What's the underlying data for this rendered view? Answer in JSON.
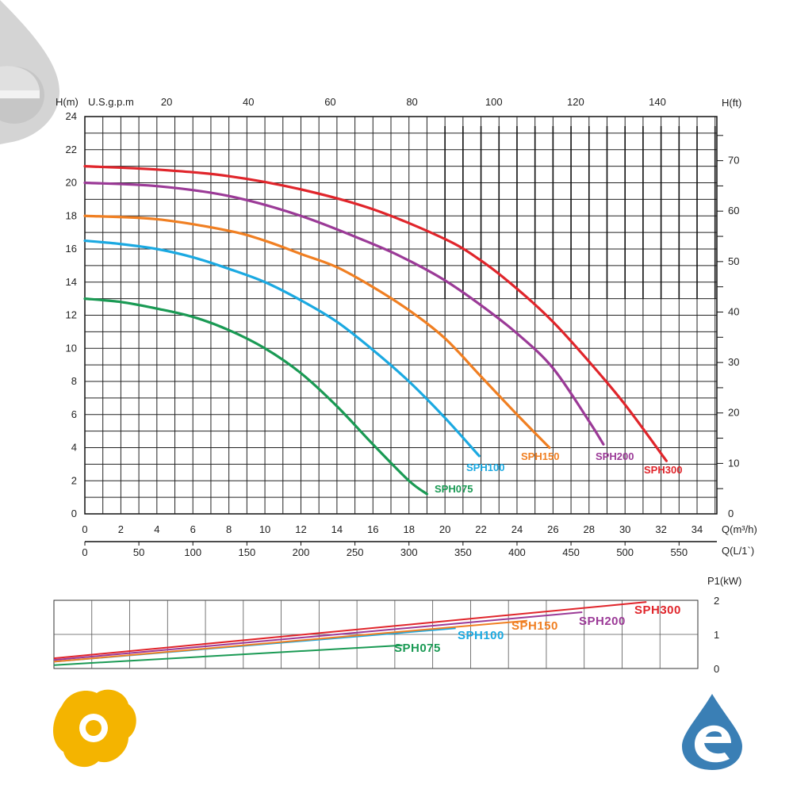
{
  "chart_data": [
    {
      "type": "line",
      "name": "head-flow",
      "x_axis_bottom": {
        "label": "Q(m³/h)",
        "ticks": [
          0,
          2,
          4,
          6,
          8,
          10,
          12,
          14,
          16,
          18,
          20,
          22,
          24,
          26,
          28,
          30,
          32,
          34
        ],
        "range": [
          0,
          35.1
        ]
      },
      "x_axis_bottom_secondary": {
        "label": "Q(L/1`)",
        "ticks": [
          0,
          50,
          100,
          150,
          200,
          250,
          300,
          350,
          400,
          450,
          500,
          550
        ]
      },
      "x_axis_top": {
        "label": "U.S.g.p.m",
        "ticks": [
          20,
          40,
          60,
          80,
          100,
          120,
          140
        ]
      },
      "y_axis_left": {
        "label": "H(m)",
        "ticks": [
          0,
          2,
          4,
          6,
          8,
          10,
          12,
          14,
          16,
          18,
          20,
          22,
          24
        ],
        "range": [
          0,
          24
        ]
      },
      "y_axis_right": {
        "label": "H(ft)",
        "ticks": [
          0,
          10,
          20,
          30,
          40,
          50,
          60,
          70
        ]
      },
      "grid": true,
      "series": [
        {
          "name": "SPH075",
          "color": "#1a9a54",
          "x": [
            0,
            2,
            4,
            6,
            8,
            10,
            12,
            14,
            16,
            18,
            19.0
          ],
          "y": [
            13.0,
            12.8,
            12.4,
            11.9,
            11.1,
            10.0,
            8.5,
            6.5,
            4.2,
            2.0,
            1.2
          ]
        },
        {
          "name": "SPH100",
          "color": "#1ba9e1",
          "x": [
            0,
            2,
            4,
            6,
            8,
            10,
            12,
            14,
            16,
            18,
            20,
            21.9
          ],
          "y": [
            16.5,
            16.3,
            16.0,
            15.5,
            14.8,
            14.0,
            12.9,
            11.6,
            9.9,
            8.0,
            5.8,
            3.5
          ]
        },
        {
          "name": "SPH150",
          "color": "#f07f22",
          "x": [
            0,
            4,
            8,
            10,
            12,
            14,
            16,
            18,
            20,
            22,
            24,
            25.8
          ],
          "y": [
            18.0,
            17.8,
            17.1,
            16.5,
            15.7,
            14.9,
            13.7,
            12.3,
            10.6,
            8.3,
            6.0,
            4.0
          ]
        },
        {
          "name": "SPH200",
          "color": "#9b3a97",
          "x": [
            0,
            4,
            8,
            12,
            16,
            18,
            20,
            22,
            24,
            26,
            28,
            28.8
          ],
          "y": [
            20.0,
            19.8,
            19.2,
            18.0,
            16.3,
            15.3,
            14.1,
            12.6,
            10.9,
            8.8,
            5.6,
            4.2
          ]
        },
        {
          "name": "SPH300",
          "color": "#e0252b",
          "x": [
            0,
            4,
            8,
            12,
            16,
            20,
            22,
            24,
            26,
            28,
            30,
            32.3
          ],
          "y": [
            21.0,
            20.8,
            20.4,
            19.6,
            18.4,
            16.6,
            15.3,
            13.6,
            11.6,
            9.2,
            6.6,
            3.2
          ]
        }
      ]
    },
    {
      "type": "line",
      "name": "power",
      "y_axis_right": {
        "label": "P1(kW)",
        "ticks": [
          0,
          1,
          2
        ],
        "range": [
          0,
          2
        ]
      },
      "grid": true,
      "series": [
        {
          "name": "SPH075",
          "color": "#1a9a54",
          "x": [
            0,
            19.0
          ],
          "y": [
            0.1,
            0.68
          ]
        },
        {
          "name": "SPH100",
          "color": "#1ba9e1",
          "x": [
            0,
            21.9
          ],
          "y": [
            0.2,
            1.18
          ]
        },
        {
          "name": "SPH150",
          "color": "#f07f22",
          "x": [
            0,
            25.8
          ],
          "y": [
            0.2,
            1.4
          ]
        },
        {
          "name": "SPH200",
          "color": "#9b3a97",
          "x": [
            0,
            28.8
          ],
          "y": [
            0.25,
            1.65
          ]
        },
        {
          "name": "SPH300",
          "color": "#e0252b",
          "x": [
            0,
            32.3
          ],
          "y": [
            0.3,
            1.95
          ]
        }
      ]
    }
  ],
  "logos": {
    "top_left": "brand-e-logo",
    "bottom_left": "sun-gear-logo",
    "bottom_right": "water-drop-e-logo",
    "top_left_color": "#c8c8c8",
    "bottom_left_color": "#f4b400",
    "bottom_right_color": "#3a7fb5"
  }
}
